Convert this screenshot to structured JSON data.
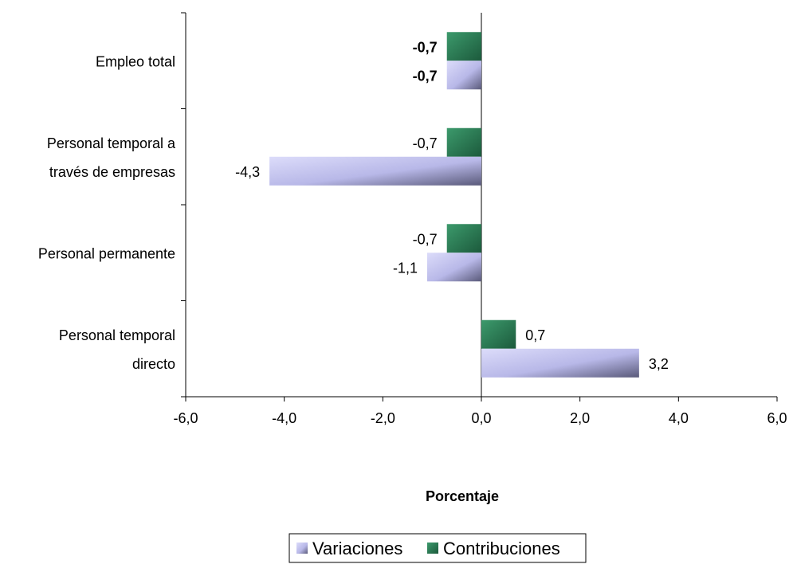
{
  "chart_data": {
    "type": "bar",
    "orientation": "horizontal",
    "categories": [
      "Empleo total",
      "Personal temporal a través de empresas",
      "Personal permanente",
      "Personal temporal directo"
    ],
    "category_lines": [
      [
        "Empleo total"
      ],
      [
        "Personal temporal a",
        "través de empresas"
      ],
      [
        "Personal permanente"
      ],
      [
        "Personal temporal",
        "directo"
      ]
    ],
    "series": [
      {
        "name": "Contribuciones",
        "values": [
          -0.7,
          -0.7,
          -0.7,
          0.7
        ],
        "labels": [
          "-0,7",
          "-0,7",
          "-0,7",
          "0,7"
        ],
        "color": "#2e7d57"
      },
      {
        "name": "Variaciones",
        "values": [
          -0.7,
          -4.3,
          -1.1,
          3.2
        ],
        "labels": [
          "-0,7",
          "-4,3",
          "-1,1",
          "3,2"
        ],
        "color": "#b4b4e6"
      }
    ],
    "bold_categories": [
      "Empleo total"
    ],
    "xlim": [
      -6,
      6
    ],
    "xticks": [
      -6,
      -4,
      -2,
      0,
      2,
      4,
      6
    ],
    "xtick_labels": [
      "-6,0",
      "-4,0",
      "-2,0",
      "0,0",
      "2,0",
      "4,0",
      "6,0"
    ],
    "xlabel": "Porcentaje",
    "legend": {
      "position": "bottom",
      "order": [
        "Variaciones",
        "Contribuciones"
      ]
    },
    "grid": false
  }
}
